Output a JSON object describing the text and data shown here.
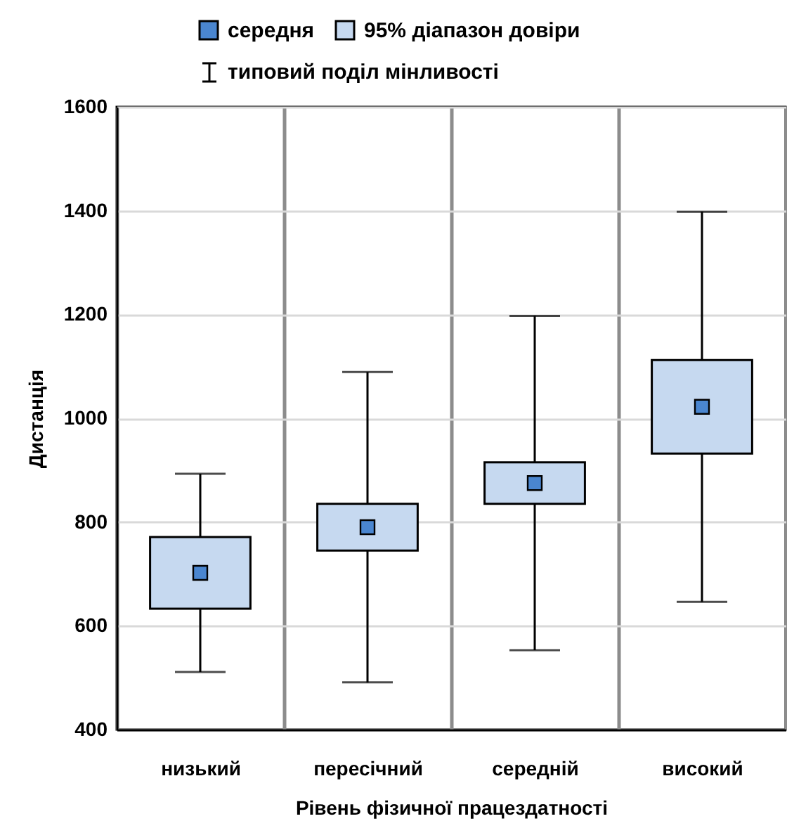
{
  "chart_data": {
    "type": "scatter",
    "categories": [
      "низький",
      "пересічний",
      "середній",
      "високий"
    ],
    "series": [
      {
        "name": "середня",
        "marker": "square",
        "color": "#4a86d0",
        "values": [
          702,
          790,
          875,
          1022
        ],
        "errors": [
          191,
          299,
          322,
          376
        ]
      },
      {
        "name": "95% діапазон довіри",
        "type": "bar",
        "color": "#c6d9f0",
        "base": [
          633,
          745,
          835,
          932
        ],
        "values": [
          138,
          90,
          80,
          180
        ]
      }
    ],
    "annotations": [
      "типовий поділ мінливості"
    ],
    "xlabel": "Рівень фізичної працездатності",
    "ylabel": "Дистанція",
    "ylim": [
      400,
      1600
    ],
    "yticks": [
      400,
      600,
      800,
      1000,
      1200,
      1400,
      1600
    ],
    "grid": true,
    "legend": "top"
  }
}
